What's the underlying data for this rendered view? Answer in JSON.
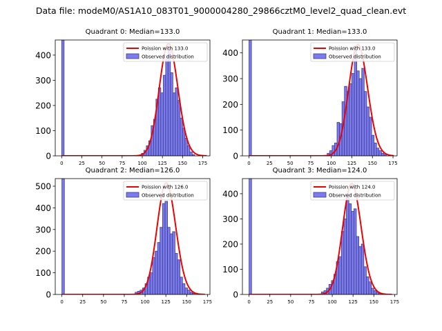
{
  "figure_title": "Data file: modeM0/AS1A10_083T01_9000004280_29866cztM0_level2_quad_clean.evt",
  "colors": {
    "bar_fill": "#7b7bed",
    "bar_edge": "#3c3c8c",
    "curve": "#ee0000",
    "axis": "#000000"
  },
  "chart_data": [
    {
      "type": "bar",
      "title": "Quadrant 0: Median=133.0",
      "legend": [
        "Poission with 133.0",
        "Observed distribution"
      ],
      "legend_position": "top-right",
      "xlim": [
        -8,
        184
      ],
      "ylim": [
        0,
        460
      ],
      "x_ticks": [
        0,
        25,
        50,
        75,
        100,
        125,
        150,
        175
      ],
      "y_ticks": [
        0,
        100,
        200,
        300,
        400
      ],
      "bin_width": 3,
      "bin_starts": [
        0,
        99,
        102,
        105,
        108,
        111,
        114,
        117,
        120,
        123,
        126,
        129,
        132,
        135,
        138,
        141,
        144,
        147,
        150,
        153,
        156,
        159,
        162
      ],
      "bar_heights": [
        460,
        10,
        22,
        40,
        60,
        120,
        145,
        225,
        270,
        250,
        320,
        400,
        420,
        330,
        250,
        270,
        220,
        150,
        110,
        70,
        40,
        15,
        5
      ],
      "curve_mean": 133.0,
      "curve_peak": 445,
      "curve_x_range": [
        0,
        180
      ]
    },
    {
      "type": "bar",
      "title": "Quadrant 1: Median=133.0",
      "legend": [
        "Poission with 133.0",
        "Observed distribution"
      ],
      "legend_position": "top-right",
      "xlim": [
        -8,
        180
      ],
      "ylim": [
        0,
        450
      ],
      "x_ticks": [
        0,
        25,
        50,
        75,
        100,
        125,
        150,
        175
      ],
      "y_ticks": [
        0,
        100,
        200,
        300,
        400
      ],
      "bin_width": 3,
      "bin_starts": [
        0,
        95,
        98,
        101,
        104,
        107,
        110,
        113,
        116,
        119,
        122,
        125,
        128,
        131,
        134,
        137,
        140,
        143,
        146,
        149,
        152,
        155,
        158,
        161,
        164
      ],
      "bar_heights": [
        450,
        10,
        20,
        40,
        50,
        130,
        125,
        210,
        270,
        250,
        280,
        320,
        410,
        330,
        300,
        340,
        250,
        190,
        150,
        80,
        50,
        30,
        20,
        10,
        5
      ],
      "curve_mean": 133.0,
      "curve_peak": 432,
      "curve_x_range": [
        0,
        176
      ]
    },
    {
      "type": "bar",
      "title": "Quadrant 2: Median=126.0",
      "legend": [
        "Poission with 126.0",
        "Observed distribution"
      ],
      "legend_position": "top-right",
      "xlim": [
        -8,
        178
      ],
      "ylim": [
        0,
        535
      ],
      "x_ticks": [
        0,
        25,
        50,
        75,
        100,
        125,
        150,
        175
      ],
      "y_ticks": [
        0,
        100,
        200,
        300,
        400,
        500
      ],
      "bin_width": 3,
      "bin_starts": [
        0,
        88,
        91,
        94,
        97,
        100,
        103,
        106,
        109,
        112,
        115,
        118,
        121,
        124,
        127,
        130,
        133,
        136,
        139,
        142,
        145,
        148,
        151,
        154,
        157
      ],
      "bar_heights": [
        535,
        10,
        15,
        20,
        30,
        50,
        80,
        100,
        170,
        200,
        240,
        310,
        420,
        430,
        310,
        280,
        290,
        190,
        160,
        80,
        50,
        30,
        20,
        10,
        5
      ],
      "curve_mean": 126.0,
      "curve_peak": 515,
      "curve_x_range": [
        0,
        172
      ]
    },
    {
      "type": "bar",
      "title": "Quadrant 3: Median=124.0",
      "legend": [
        "Poission with 124.0",
        "Observed distribution"
      ],
      "legend_position": "top-right",
      "xlim": [
        -8,
        178
      ],
      "ylim": [
        0,
        460
      ],
      "x_ticks": [
        0,
        25,
        50,
        75,
        100,
        125,
        150,
        175
      ],
      "y_ticks": [
        0,
        100,
        200,
        300,
        400
      ],
      "bin_width": 3,
      "bin_starts": [
        0,
        87,
        90,
        93,
        96,
        99,
        102,
        105,
        108,
        111,
        114,
        117,
        120,
        123,
        126,
        129,
        132,
        135,
        138,
        141,
        144,
        147,
        150,
        153,
        156
      ],
      "bar_heights": [
        460,
        10,
        15,
        25,
        40,
        55,
        80,
        130,
        150,
        250,
        300,
        400,
        360,
        330,
        340,
        230,
        190,
        200,
        110,
        70,
        50,
        25,
        15,
        10,
        5
      ],
      "curve_mean": 124.0,
      "curve_peak": 440,
      "curve_x_range": [
        0,
        172
      ]
    }
  ]
}
